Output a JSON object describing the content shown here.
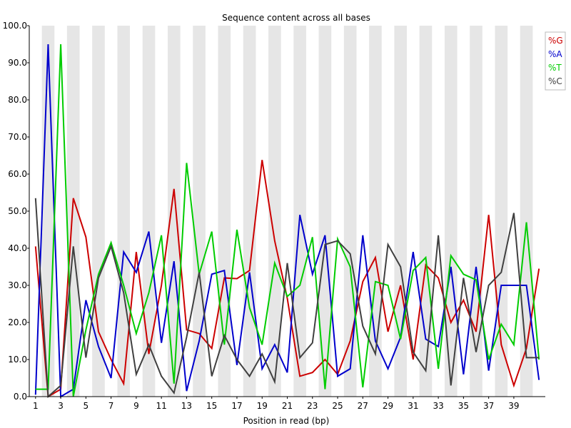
{
  "chart_data": {
    "type": "line",
    "title": "Sequence content across all bases",
    "xlabel": "Position in read (bp)",
    "ylabel": "",
    "ylim": [
      0,
      100
    ],
    "yticks": [
      "0.0",
      "10.0",
      "20.0",
      "30.0",
      "40.0",
      "50.0",
      "60.0",
      "70.0",
      "80.0",
      "90.0",
      "100.0"
    ],
    "xticks": [
      "1",
      "3",
      "5",
      "7",
      "9",
      "11",
      "13",
      "15",
      "17",
      "19",
      "21",
      "23",
      "25",
      "27",
      "29",
      "31",
      "33",
      "35",
      "37",
      "39"
    ],
    "x": [
      1,
      2,
      3,
      4,
      5,
      6,
      7,
      8,
      9,
      10,
      11,
      12,
      13,
      14,
      15,
      16,
      17,
      18,
      19,
      20,
      21,
      22,
      23,
      24,
      25,
      26,
      27,
      28,
      29,
      30,
      31,
      32,
      33,
      34,
      35,
      36,
      37,
      38,
      39,
      40,
      41
    ],
    "grid": "alternating-vertical-bands",
    "legend_position": "top-right",
    "series": [
      {
        "name": "%G",
        "color": "#cc0000",
        "values": [
          40.5,
          0.0,
          2.0,
          53.5,
          43.0,
          17.5,
          10.0,
          3.5,
          39.0,
          11.5,
          30.0,
          56.0,
          18.0,
          17.0,
          13.0,
          32.0,
          31.8,
          34.0,
          63.8,
          42.0,
          26.5,
          5.5,
          6.5,
          10.0,
          6.0,
          15.0,
          31.0,
          37.5,
          17.5,
          30.0,
          10.0,
          35.5,
          32.0,
          20.0,
          26.0,
          17.5,
          49.0,
          14.0,
          3.0,
          13.0,
          34.5
        ]
      },
      {
        "name": "%A",
        "color": "#0000cc",
        "values": [
          0.5,
          95.0,
          0.0,
          2.0,
          26.0,
          13.5,
          5.0,
          39.0,
          33.5,
          44.5,
          14.5,
          36.5,
          1.5,
          15.0,
          33.0,
          34.0,
          8.5,
          33.5,
          7.5,
          14.0,
          6.5,
          49.0,
          33.0,
          43.5,
          5.5,
          7.5,
          43.5,
          15.0,
          7.5,
          16.0,
          39.0,
          15.5,
          13.5,
          35.0,
          6.0,
          35.0,
          7.0,
          30.0,
          30.0,
          30.0,
          4.5
        ]
      },
      {
        "name": "%T",
        "color": "#00cc00",
        "values": [
          2.0,
          2.0,
          95.0,
          0.0,
          18.0,
          33.0,
          41.5,
          30.0,
          17.0,
          28.0,
          43.5,
          3.5,
          63.0,
          33.0,
          44.5,
          14.0,
          45.0,
          24.0,
          14.0,
          36.0,
          27.0,
          30.0,
          43.0,
          2.0,
          42.5,
          35.0,
          2.5,
          31.0,
          30.0,
          15.5,
          34.0,
          37.5,
          7.5,
          38.0,
          33.0,
          31.5,
          10.0,
          19.5,
          14.0,
          47.0,
          10.0
        ]
      },
      {
        "name": "%C",
        "color": "#404040",
        "values": [
          53.5,
          0.0,
          3.0,
          40.5,
          10.5,
          32.0,
          40.5,
          28.0,
          6.0,
          14.0,
          5.5,
          1.0,
          16.0,
          33.5,
          5.5,
          16.5,
          10.0,
          5.5,
          11.5,
          4.0,
          36.0,
          10.5,
          14.5,
          41.0,
          42.0,
          38.5,
          19.0,
          11.5,
          41.0,
          35.0,
          12.0,
          7.0,
          43.5,
          3.0,
          32.0,
          12.0,
          30.0,
          33.5,
          49.5,
          10.5,
          10.5
        ]
      }
    ]
  }
}
